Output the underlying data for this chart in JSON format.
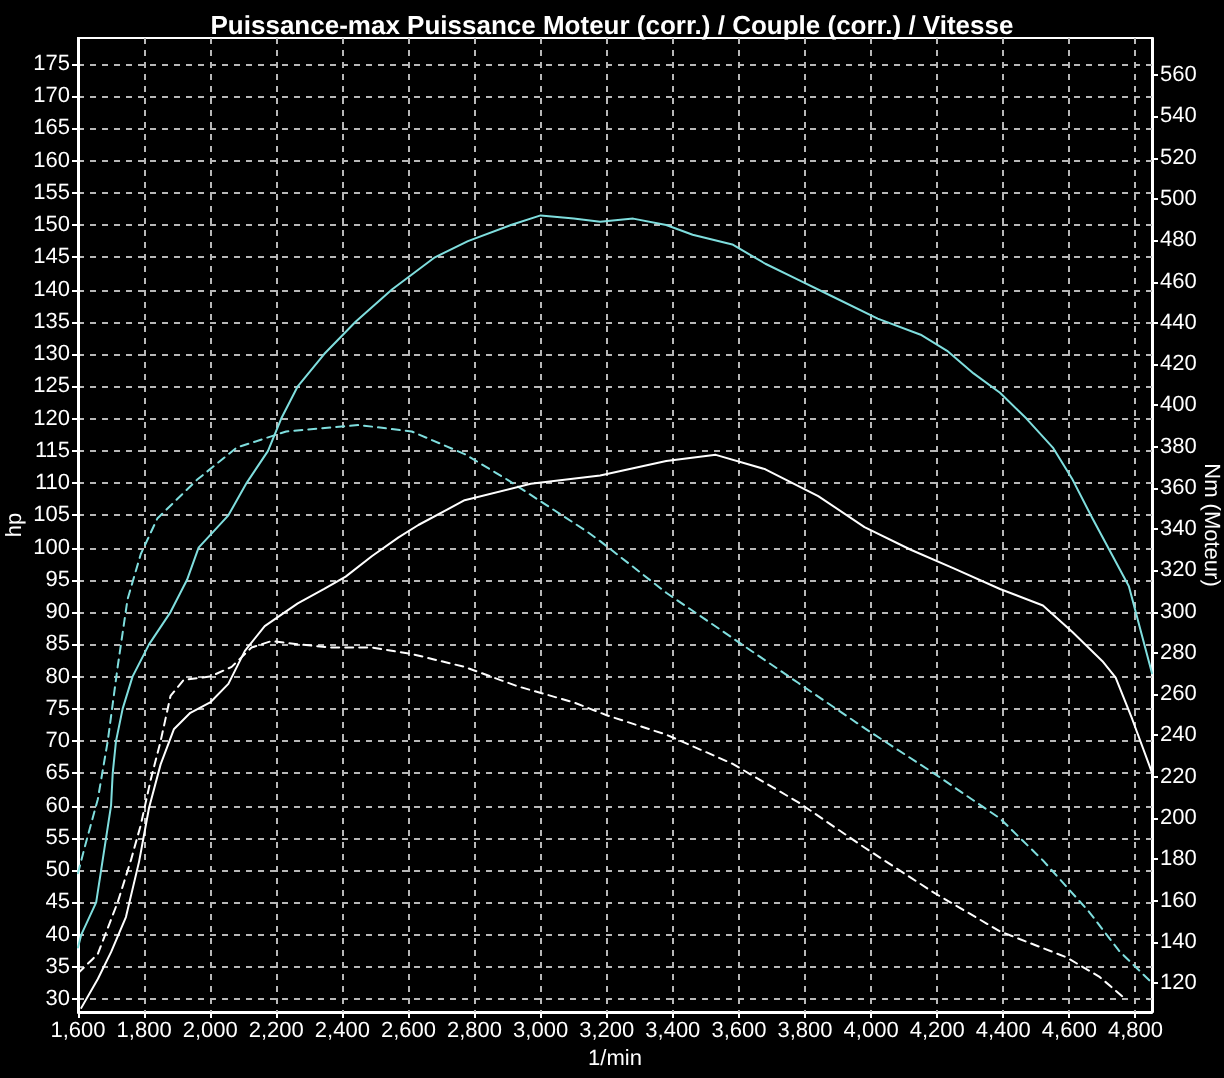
{
  "chart_data": {
    "type": "line",
    "title": "Puissance-max Puissance Moteur (corr.) / Couple (corr.) / Vitesse",
    "xlabel": "1/min",
    "ylabel": "hp",
    "y2label": "Nm (Moteur)",
    "xlim": [
      1600,
      4850
    ],
    "xticks": [
      {
        "value": 1600,
        "label": "1,600"
      },
      {
        "value": 1800,
        "label": "1,800"
      },
      {
        "value": 2000,
        "label": "2,000"
      },
      {
        "value": 2200,
        "label": "2,200"
      },
      {
        "value": 2400,
        "label": "2,400"
      },
      {
        "value": 2600,
        "label": "2,600"
      },
      {
        "value": 2800,
        "label": "2,800"
      },
      {
        "value": 3000,
        "label": "3,000"
      },
      {
        "value": 3200,
        "label": "3,200"
      },
      {
        "value": 3400,
        "label": "3,400"
      },
      {
        "value": 3600,
        "label": "3,600"
      },
      {
        "value": 3800,
        "label": "3,800"
      },
      {
        "value": 4000,
        "label": "4,000"
      },
      {
        "value": 4200,
        "label": "4,200"
      },
      {
        "value": 4400,
        "label": "4,400"
      },
      {
        "value": 4600,
        "label": "4,600"
      },
      {
        "value": 4800,
        "label": "4,800"
      }
    ],
    "ylim": [
      28,
      179
    ],
    "yticks": [
      30,
      35,
      40,
      45,
      50,
      55,
      60,
      65,
      70,
      75,
      80,
      85,
      90,
      95,
      100,
      105,
      110,
      115,
      120,
      125,
      130,
      135,
      140,
      145,
      150,
      155,
      160,
      165,
      170,
      175
    ],
    "y2lim": [
      106,
      578
    ],
    "y2ticks": [
      120,
      140,
      160,
      180,
      200,
      220,
      240,
      260,
      280,
      300,
      320,
      340,
      360,
      380,
      400,
      420,
      440,
      460,
      480,
      500,
      520,
      540,
      560
    ],
    "grid": true,
    "marker": "none",
    "series": [
      {
        "color": "#7fdede",
        "line_style": "solid",
        "x": [
          1600,
          1610,
          1655,
          1670,
          1685,
          1700,
          1705,
          1715,
          1735,
          1765,
          1815,
          1880,
          1930,
          1965,
          2055,
          2110,
          2175,
          2215,
          2265,
          2345,
          2440,
          2550,
          2680,
          2780,
          2910,
          3000,
          3100,
          3180,
          3280,
          3380,
          3460,
          3580,
          3680,
          3780,
          3880,
          4020,
          4150,
          4230,
          4310,
          4390,
          4470,
          4550,
          4610,
          4670,
          4780,
          4850
        ],
        "values": [
          38,
          40,
          45,
          50,
          55,
          60,
          65,
          70,
          75,
          80,
          85,
          90,
          95,
          100,
          105,
          110,
          115,
          120,
          125,
          130,
          135,
          140,
          145,
          147.5,
          150,
          151.5,
          151,
          150.5,
          151,
          150,
          148.5,
          147,
          144,
          141.5,
          139,
          135.5,
          133,
          130.5,
          127,
          124,
          120,
          115.5,
          110.5,
          104.5,
          94,
          80.5
        ]
      },
      {
        "color": "#7fdede",
        "line_style": "dashed",
        "x": [
          1600,
          1620,
          1660,
          1690,
          1720,
          1750,
          1790,
          1840,
          1960,
          2080,
          2230,
          2450,
          2610,
          2770,
          2900,
          3020,
          3140,
          3180,
          3380,
          3580,
          3780,
          3980,
          4190,
          4390,
          4520,
          4590,
          4660,
          4750,
          4850
        ],
        "values": [
          49.5,
          53.5,
          61,
          70,
          81.5,
          92,
          99,
          104.5,
          110.5,
          115.5,
          118,
          119,
          118,
          114.5,
          110.5,
          106.5,
          102.5,
          101,
          93,
          86,
          79,
          72,
          65,
          58,
          51.5,
          47.5,
          43.5,
          37.5,
          32.5
        ]
      },
      {
        "color": "#ffffff",
        "line_style": "solid",
        "axis": "y2",
        "x": [
          1610,
          1660,
          1700,
          1745,
          1785,
          1815,
          1850,
          1890,
          1940,
          2000,
          2055,
          2105,
          2165,
          2265,
          2345,
          2410,
          2490,
          2570,
          2630,
          2770,
          2970,
          3180,
          3380,
          3530,
          3680,
          3840,
          3980,
          4120,
          4250,
          4390,
          4520,
          4610,
          4700,
          4740,
          4790,
          4850
        ],
        "values": [
          108,
          122,
          135,
          152,
          179,
          205,
          226,
          243,
          251,
          256,
          265,
          281,
          293,
          304,
          311,
          317,
          327,
          336,
          342,
          354,
          362,
          366,
          373,
          376,
          369,
          356,
          341,
          330,
          321,
          311,
          303,
          290,
          276,
          268,
          248,
          222
        ]
      },
      {
        "color": "#ffffff",
        "line_style": "dashed",
        "x": [
          1600,
          1660,
          1720,
          1760,
          1790,
          1820,
          1850,
          1880,
          1920,
          2000,
          2065,
          2125,
          2185,
          2265,
          2370,
          2490,
          2610,
          2770,
          2930,
          3100,
          3200,
          3380,
          3580,
          3780,
          3980,
          4190,
          4390,
          4590,
          4690,
          4770
        ],
        "values": [
          34,
          37,
          45,
          51.5,
          57,
          64,
          70,
          77,
          79.5,
          80,
          81.5,
          84.5,
          85.5,
          85,
          84.5,
          84.5,
          83.5,
          81.5,
          78.5,
          76,
          74,
          71,
          66.5,
          60.5,
          53.5,
          46.5,
          40.5,
          36.5,
          33.5,
          30
        ]
      }
    ]
  }
}
